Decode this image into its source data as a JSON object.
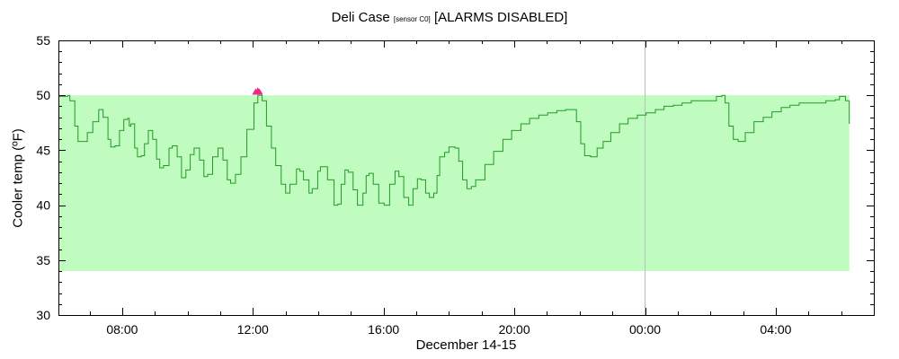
{
  "chart_data": {
    "type": "line",
    "title": "Deli Case",
    "title_sub": "[sensor C0]",
    "title_suffix": "[ALARMS DISABLED]",
    "xlabel": "December 14-15",
    "ylabel": "Cooler temp (ºF)",
    "xlim": [
      "Dec 14 06:03",
      "Dec 15 07:00"
    ],
    "ylim": [
      30,
      55
    ],
    "yticks": [
      30,
      35,
      40,
      45,
      50,
      55
    ],
    "xticks": [
      {
        "t": "Dec 14 08:00",
        "label": "08:00"
      },
      {
        "t": "Dec 14 12:00",
        "label": "12:00"
      },
      {
        "t": "Dec 14 16:00",
        "label": "16:00"
      },
      {
        "t": "Dec 14 20:00",
        "label": "20:00"
      },
      {
        "t": "Dec 15 00:00",
        "label": "00:00"
      },
      {
        "t": "Dec 15 04:00",
        "label": "04:00"
      }
    ],
    "grid": false,
    "midnight_line": "Dec 15 00:00",
    "acceptable_band": {
      "low": 34,
      "high": 50,
      "end": "Dec 15 06:15"
    },
    "colors": {
      "band": "#c0fcc0",
      "line": "#229922",
      "alarm": "#f0288c",
      "midnight": "#bbbbbb"
    },
    "alarm_markers": [
      {
        "t": "Dec 14 12:05",
        "y": 50.3
      },
      {
        "t": "Dec 14 12:09",
        "y": 50.4
      },
      {
        "t": "Dec 14 12:12",
        "y": 50.3
      }
    ],
    "series": [
      {
        "points": [
          [
            "Dec 14 06:03",
            49.9
          ],
          [
            "Dec 14 06:15",
            49.9
          ],
          [
            "Dec 14 06:20",
            50.0
          ],
          [
            "Dec 14 06:24",
            49.5
          ],
          [
            "Dec 14 06:33",
            47.2
          ],
          [
            "Dec 14 06:39",
            45.8
          ],
          [
            "Dec 14 06:47",
            45.8
          ],
          [
            "Dec 14 06:56",
            46.6
          ],
          [
            "Dec 14 07:06",
            47.6
          ],
          [
            "Dec 14 07:17",
            48.7
          ],
          [
            "Dec 14 07:19",
            48.7
          ],
          [
            "Dec 14 07:25",
            48.0
          ],
          [
            "Dec 14 07:34",
            46.0
          ],
          [
            "Dec 14 07:39",
            45.3
          ],
          [
            "Dec 14 07:47",
            45.4
          ],
          [
            "Dec 14 07:55",
            46.8
          ],
          [
            "Dec 14 08:03",
            47.8
          ],
          [
            "Dec 14 08:10",
            47.9
          ],
          [
            "Dec 14 08:13",
            47.2
          ],
          [
            "Dec 14 08:16",
            47.4
          ],
          [
            "Dec 14 08:23",
            45.2
          ],
          [
            "Dec 14 08:28",
            44.4
          ],
          [
            "Dec 14 08:35",
            44.5
          ],
          [
            "Dec 14 08:41",
            45.6
          ],
          [
            "Dec 14 08:48",
            46.8
          ],
          [
            "Dec 14 08:56",
            46.0
          ],
          [
            "Dec 14 09:03",
            44.2
          ],
          [
            "Dec 14 09:09",
            43.4
          ],
          [
            "Dec 14 09:16",
            43.6
          ],
          [
            "Dec 14 09:26",
            45.2
          ],
          [
            "Dec 14 09:32",
            45.4
          ],
          [
            "Dec 14 09:41",
            44.4
          ],
          [
            "Dec 14 09:49",
            42.5
          ],
          [
            "Dec 14 09:57",
            43.2
          ],
          [
            "Dec 14 10:05",
            44.6
          ],
          [
            "Dec 14 10:12",
            45.2
          ],
          [
            "Dec 14 10:15",
            45.2
          ],
          [
            "Dec 14 10:22",
            44.1
          ],
          [
            "Dec 14 10:30",
            42.6
          ],
          [
            "Dec 14 10:37",
            42.8
          ],
          [
            "Dec 14 10:46",
            44.4
          ],
          [
            "Dec 14 10:56",
            45.2
          ],
          [
            "Dec 14 11:05",
            44.1
          ],
          [
            "Dec 14 11:13",
            42.3
          ],
          [
            "Dec 14 11:19",
            42.0
          ],
          [
            "Dec 14 11:28",
            42.8
          ],
          [
            "Dec 14 11:38",
            44.4
          ],
          [
            "Dec 14 11:49",
            46.9
          ],
          [
            "Dec 14 12:02",
            49.3
          ],
          [
            "Dec 14 12:09",
            50.0
          ],
          [
            "Dec 14 12:17",
            49.5
          ],
          [
            "Dec 14 12:25",
            47.2
          ],
          [
            "Dec 14 12:34",
            45.2
          ],
          [
            "Dec 14 12:42",
            43.6
          ],
          [
            "Dec 14 12:52",
            41.9
          ],
          [
            "Dec 14 13:00",
            41.1
          ],
          [
            "Dec 14 13:08",
            41.9
          ],
          [
            "Dec 14 13:20",
            43.3
          ],
          [
            "Dec 14 13:26",
            43.1
          ],
          [
            "Dec 14 13:33",
            42.3
          ],
          [
            "Dec 14 13:43",
            41.1
          ],
          [
            "Dec 14 13:49",
            41.5
          ],
          [
            "Dec 14 13:59",
            43.1
          ],
          [
            "Dec 14 14:04",
            43.5
          ],
          [
            "Dec 14 14:17",
            42.3
          ],
          [
            "Dec 14 14:29",
            40.0
          ],
          [
            "Dec 14 14:36",
            40.1
          ],
          [
            "Dec 14 14:42",
            41.9
          ],
          [
            "Dec 14 14:49",
            43.2
          ],
          [
            "Dec 14 14:55",
            43.0
          ],
          [
            "Dec 14 15:04",
            41.4
          ],
          [
            "Dec 14 15:12",
            40.0
          ],
          [
            "Dec 14 15:22",
            41.1
          ],
          [
            "Dec 14 15:28",
            42.7
          ],
          [
            "Dec 14 15:33",
            42.9
          ],
          [
            "Dec 14 15:41",
            41.9
          ],
          [
            "Dec 14 15:51",
            40.2
          ],
          [
            "Dec 14 16:01",
            40.0
          ],
          [
            "Dec 14 16:11",
            41.9
          ],
          [
            "Dec 14 16:21",
            43.1
          ],
          [
            "Dec 14 16:28",
            42.6
          ],
          [
            "Dec 14 16:37",
            40.7
          ],
          [
            "Dec 14 16:46",
            40.0
          ],
          [
            "Dec 14 16:54",
            41.5
          ],
          [
            "Dec 14 17:02",
            42.4
          ],
          [
            "Dec 14 17:09",
            42.3
          ],
          [
            "Dec 14 17:17",
            41.1
          ],
          [
            "Dec 14 17:24",
            40.7
          ],
          [
            "Dec 14 17:32",
            41.1
          ],
          [
            "Dec 14 17:38",
            42.7
          ],
          [
            "Dec 14 17:43",
            44.4
          ],
          [
            "Dec 14 17:52",
            44.8
          ],
          [
            "Dec 14 18:00",
            45.3
          ],
          [
            "Dec 14 18:11",
            45.2
          ],
          [
            "Dec 14 18:18",
            44.0
          ],
          [
            "Dec 14 18:25",
            42.3
          ],
          [
            "Dec 14 18:33",
            41.5
          ],
          [
            "Dec 14 18:41",
            41.7
          ],
          [
            "Dec 14 18:49",
            42.3
          ],
          [
            "Dec 14 19:06",
            43.7
          ],
          [
            "Dec 14 19:22",
            44.9
          ],
          [
            "Dec 14 19:39",
            46.0
          ],
          [
            "Dec 14 19:55",
            46.8
          ],
          [
            "Dec 14 20:12",
            47.4
          ],
          [
            "Dec 14 20:28",
            47.9
          ],
          [
            "Dec 14 20:45",
            48.2
          ],
          [
            "Dec 14 21:01",
            48.4
          ],
          [
            "Dec 14 21:18",
            48.6
          ],
          [
            "Dec 14 21:34",
            48.7
          ],
          [
            "Dec 14 21:46",
            48.7
          ],
          [
            "Dec 14 21:54",
            47.6
          ],
          [
            "Dec 14 22:02",
            45.6
          ],
          [
            "Dec 14 22:09",
            44.5
          ],
          [
            "Dec 14 22:20",
            44.4
          ],
          [
            "Dec 14 22:32",
            45.2
          ],
          [
            "Dec 14 22:43",
            45.8
          ],
          [
            "Dec 14 22:57",
            46.6
          ],
          [
            "Dec 14 23:13",
            47.4
          ],
          [
            "Dec 14 23:29",
            47.9
          ],
          [
            "Dec 14 23:46",
            48.2
          ],
          [
            "Dec 15 00:02",
            48.4
          ],
          [
            "Dec 15 00:19",
            48.7
          ],
          [
            "Dec 15 00:35",
            49.0
          ],
          [
            "Dec 15 00:52",
            49.1
          ],
          [
            "Dec 15 01:08",
            49.3
          ],
          [
            "Dec 15 01:25",
            49.5
          ],
          [
            "Dec 15 01:58",
            49.5
          ],
          [
            "Dec 15 02:11",
            49.9
          ],
          [
            "Dec 15 02:21",
            50.0
          ],
          [
            "Dec 15 02:27",
            49.3
          ],
          [
            "Dec 15 02:34",
            47.2
          ],
          [
            "Dec 15 02:42",
            46.0
          ],
          [
            "Dec 15 02:51",
            45.8
          ],
          [
            "Dec 15 03:04",
            46.6
          ],
          [
            "Dec 15 03:20",
            47.6
          ],
          [
            "Dec 15 03:37",
            48.0
          ],
          [
            "Dec 15 03:53",
            48.5
          ],
          [
            "Dec 15 04:10",
            48.9
          ],
          [
            "Dec 15 04:26",
            49.1
          ],
          [
            "Dec 15 04:43",
            49.3
          ],
          [
            "Dec 15 05:32",
            49.5
          ],
          [
            "Dec 15 05:49",
            49.6
          ],
          [
            "Dec 15 05:57",
            49.9
          ],
          [
            "Dec 15 06:05",
            49.9
          ],
          [
            "Dec 15 06:08",
            49.5
          ],
          [
            "Dec 15 06:15",
            47.4
          ]
        ]
      }
    ]
  }
}
